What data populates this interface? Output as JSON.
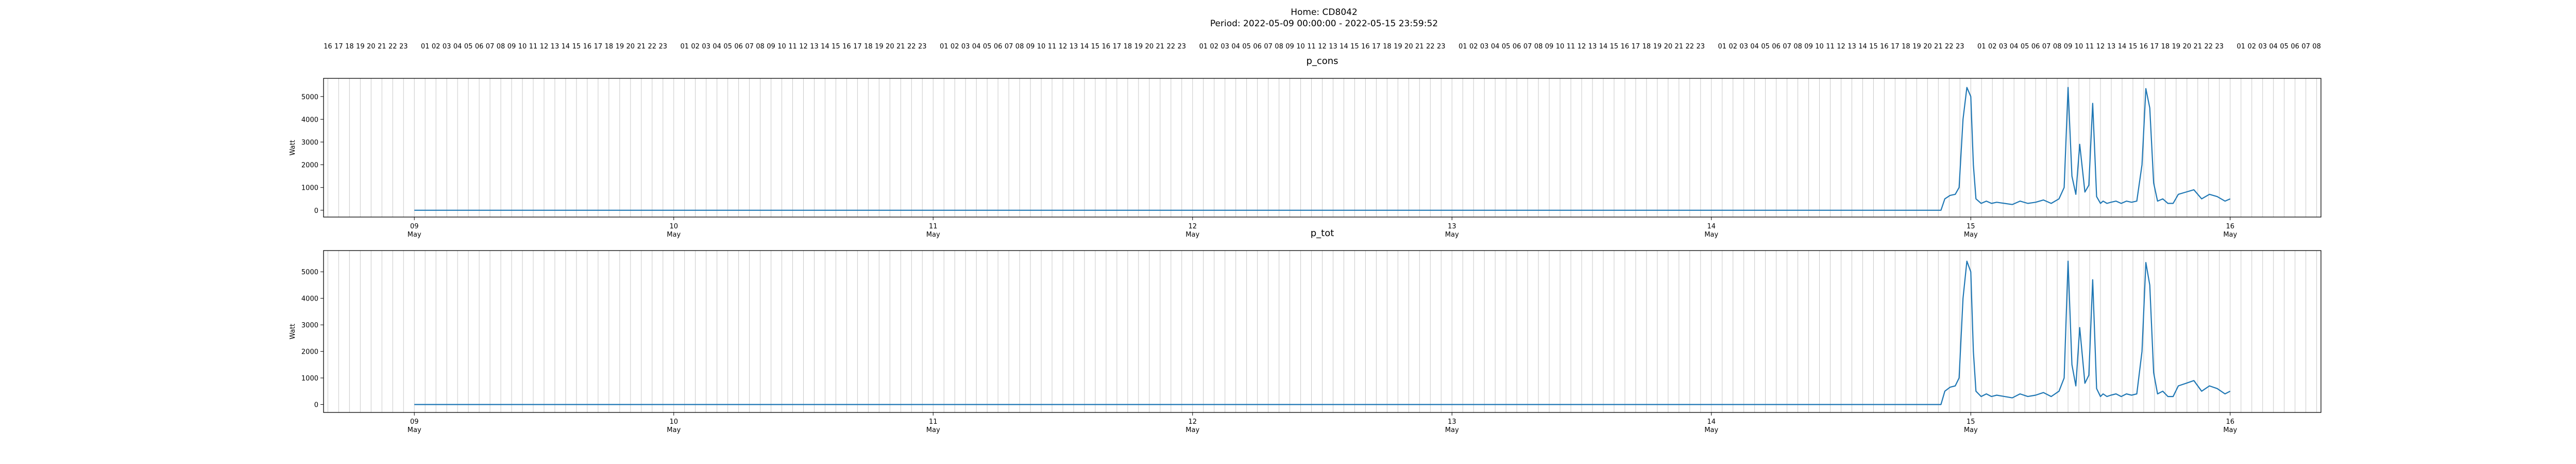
{
  "figure": {
    "title_line1": "Home: CD8042",
    "title_line2": "Period: 2022-05-09 00:00:00 - 2022-05-15 23:59:52"
  },
  "chart_data": [
    {
      "type": "line",
      "title": "p_cons",
      "ylabel": "Watt",
      "xlabel": "",
      "xlim": [
        -0.35,
        7.35
      ],
      "ylim": [
        -300,
        5800
      ],
      "yticks": [
        0,
        1000,
        2000,
        3000,
        4000,
        5000
      ],
      "xticks": [
        0,
        1,
        2,
        3,
        4,
        5,
        6,
        7
      ],
      "xtick_labels": [
        [
          "09",
          "May"
        ],
        [
          "10",
          "May"
        ],
        [
          "11",
          "May"
        ],
        [
          "12",
          "May"
        ],
        [
          "13",
          "May"
        ],
        [
          "14",
          "May"
        ],
        [
          "15",
          "May"
        ],
        [
          "16",
          "May"
        ]
      ],
      "hour_ticks": {
        "start_hour": 16,
        "end_hour": 8,
        "skip_midnight_label": true
      },
      "grid": "vertical-hourly",
      "color": "#1f77b4",
      "series": [
        {
          "x": [
            0,
            5.885,
            5.9,
            5.92,
            5.94,
            5.955,
            5.97,
            5.985,
            6.0,
            6.01,
            6.02,
            6.04,
            6.06,
            6.08,
            6.1,
            6.13,
            6.16,
            6.19,
            6.22,
            6.25,
            6.28,
            6.31,
            6.34,
            6.36,
            6.375,
            6.39,
            6.405,
            6.42,
            6.44,
            6.455,
            6.47,
            6.485,
            6.5,
            6.51,
            6.525,
            6.54,
            6.56,
            6.58,
            6.6,
            6.62,
            6.64,
            6.66,
            6.675,
            6.69,
            6.705,
            6.72,
            6.74,
            6.76,
            6.78,
            6.8,
            6.83,
            6.86,
            6.89,
            6.92,
            6.95,
            6.98,
            7.0
          ],
          "y": [
            0,
            0,
            500,
            650,
            700,
            1000,
            4000,
            5400,
            5000,
            2000,
            500,
            300,
            400,
            300,
            350,
            300,
            250,
            400,
            300,
            350,
            450,
            300,
            500,
            1000,
            5400,
            1500,
            700,
            2900,
            800,
            1100,
            4700,
            600,
            300,
            400,
            300,
            350,
            400,
            300,
            400,
            350,
            400,
            2000,
            5350,
            4500,
            1200,
            400,
            500,
            300,
            300,
            700,
            800,
            900,
            500,
            700,
            600,
            400,
            500
          ]
        }
      ]
    },
    {
      "type": "line",
      "title": "p_tot",
      "ylabel": "Watt",
      "xlabel": "",
      "xlim": [
        -0.35,
        7.35
      ],
      "ylim": [
        -300,
        5800
      ],
      "yticks": [
        0,
        1000,
        2000,
        3000,
        4000,
        5000
      ],
      "xticks": [
        0,
        1,
        2,
        3,
        4,
        5,
        6,
        7
      ],
      "xtick_labels": [
        [
          "09",
          "May"
        ],
        [
          "10",
          "May"
        ],
        [
          "11",
          "May"
        ],
        [
          "12",
          "May"
        ],
        [
          "13",
          "May"
        ],
        [
          "14",
          "May"
        ],
        [
          "15",
          "May"
        ],
        [
          "16",
          "May"
        ]
      ],
      "grid": "vertical-hourly",
      "color": "#1f77b4",
      "series": [
        {
          "x": [
            0,
            5.885,
            5.9,
            5.92,
            5.94,
            5.955,
            5.97,
            5.985,
            6.0,
            6.01,
            6.02,
            6.04,
            6.06,
            6.08,
            6.1,
            6.13,
            6.16,
            6.19,
            6.22,
            6.25,
            6.28,
            6.31,
            6.34,
            6.36,
            6.375,
            6.39,
            6.405,
            6.42,
            6.44,
            6.455,
            6.47,
            6.485,
            6.5,
            6.51,
            6.525,
            6.54,
            6.56,
            6.58,
            6.6,
            6.62,
            6.64,
            6.66,
            6.675,
            6.69,
            6.705,
            6.72,
            6.74,
            6.76,
            6.78,
            6.8,
            6.83,
            6.86,
            6.89,
            6.92,
            6.95,
            6.98,
            7.0
          ],
          "y": [
            0,
            0,
            500,
            650,
            700,
            1000,
            4000,
            5400,
            5000,
            2000,
            500,
            300,
            400,
            300,
            350,
            300,
            250,
            400,
            300,
            350,
            450,
            300,
            500,
            1000,
            5400,
            1500,
            700,
            2900,
            800,
            1100,
            4700,
            600,
            300,
            400,
            300,
            350,
            400,
            300,
            400,
            350,
            400,
            2000,
            5350,
            4500,
            1200,
            400,
            500,
            300,
            300,
            700,
            800,
            900,
            500,
            700,
            600,
            400,
            500
          ]
        }
      ]
    }
  ]
}
